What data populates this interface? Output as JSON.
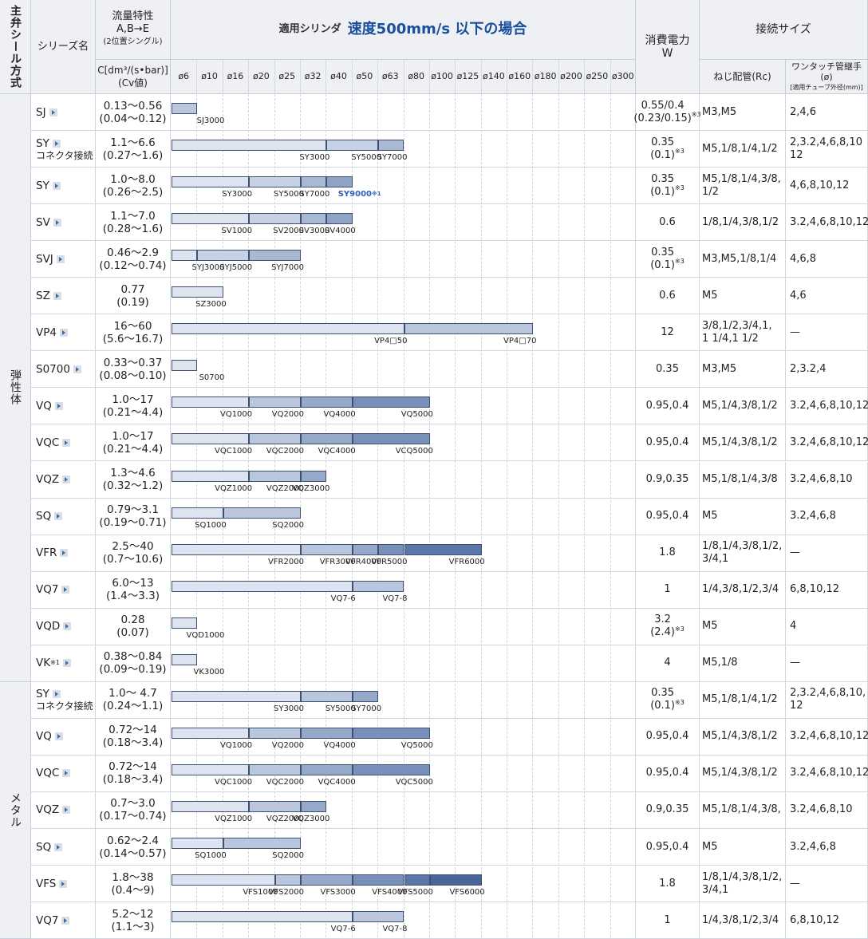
{
  "header": {
    "seal": "主弁シール方式",
    "series": "シリーズ名",
    "flow_title": "流量特性\nA,B→E",
    "flow_sub": "(2位置シングル)",
    "flow_units": "C[dm³/(s•bar)]\n(Cv値)",
    "cylinder_label": "適用シリンダ",
    "cylinder_speed": "速度500mm/s 以下の場合",
    "power": "消費電力\nW",
    "connection": "接続サイズ",
    "thread": "ねじ配管(Rc)",
    "onetouch": "ワンタッチ管継手(ø)",
    "onetouch_sub": "[適用チューブ外径(mm)]"
  },
  "diameters": [
    "ø6",
    "ø10",
    "ø16",
    "ø20",
    "ø25",
    "ø32",
    "ø40",
    "ø50",
    "ø63",
    "ø80",
    "ø100",
    "ø125",
    "ø140",
    "ø160",
    "ø180",
    "ø200",
    "ø250",
    "ø300"
  ],
  "groups": [
    {
      "label": "弾性体",
      "rows": 16
    },
    {
      "label": "メタル",
      "rows": 7
    }
  ],
  "rows": [
    {
      "series": "SJ",
      "sub": "",
      "flow": "0.13〜0.56\n(0.04〜0.12)",
      "power": "0.55/0.4\n(0.23/0.15)",
      "power_note": "※3",
      "port": "M3,M5",
      "onetouch": "2,4,6",
      "bars": [
        {
          "label": "SJ3000",
          "end": 1,
          "color": "#b9c6db"
        }
      ]
    },
    {
      "series": "SY",
      "sub": "コネクタ接続",
      "flow": "1.1〜6.6\n(0.27〜1.6)",
      "power": "0.35\n(0.1)",
      "power_note": "※3",
      "port": "M5,1/8,1/4,1/2",
      "onetouch": "2,3.2,4,6,8,10\n12",
      "bars": [
        {
          "label": "SY3000",
          "end": 6,
          "color": "#dde4ef"
        },
        {
          "label": "SY5000",
          "end": 8,
          "color": "#c6d1e3"
        },
        {
          "label": "SY7000",
          "end": 9,
          "color": "#a9b9d4"
        }
      ]
    },
    {
      "series": "SY",
      "sub": "",
      "flow": "1.0〜8.0\n(0.26〜2.5)",
      "power": "0.35\n(0.1)",
      "power_note": "※3",
      "port": "M5,1/8,1/4,3/8,\n1/2",
      "onetouch": "4,6,8,10,12",
      "bars": [
        {
          "label": "SY3000",
          "end": 3,
          "color": "#dde4ef"
        },
        {
          "label": "SY5000",
          "end": 5,
          "color": "#c6d1e3"
        },
        {
          "label": "SY7000",
          "end": 6,
          "color": "#a9b9d4"
        },
        {
          "label": "SY9000",
          "end": 7,
          "color": "#8ea3c6"
        }
      ]
    },
    {
      "series": "SV",
      "sub": "",
      "flow": "1.1〜7.0\n(0.28〜1.6)",
      "power": "0.6",
      "power_note": "",
      "port": "1/8,1/4,3/8,1/2",
      "onetouch": "3.2,4,6,8,10,12",
      "bars": [
        {
          "label": "SV1000",
          "end": 3,
          "color": "#dde4ef"
        },
        {
          "label": "SV2000",
          "end": 5,
          "color": "#c6d1e3"
        },
        {
          "label": "SV3000",
          "end": 6,
          "color": "#a9b9d4"
        },
        {
          "label": "SV4000",
          "end": 7,
          "color": "#8ea3c6"
        }
      ]
    },
    {
      "series": "SVJ",
      "sub": "",
      "flow": "0.46〜2.9\n(0.12〜0.74)",
      "power": "0.35\n(0.1)",
      "power_note": "※3",
      "port": "M3,M5,1/8,1/4",
      "onetouch": "4,6,8",
      "bars": [
        {
          "label": "SYJ3000",
          "end": 1,
          "color": "#dde4ef"
        },
        {
          "label": "SYJ5000",
          "end": 3,
          "color": "#c6d1e3"
        },
        {
          "label": "SYJ7000",
          "end": 5,
          "color": "#a9b9d4"
        }
      ]
    },
    {
      "series": "SZ",
      "sub": "",
      "flow": "0.77\n(0.19)",
      "power": "0.6",
      "power_note": "",
      "port": "M5",
      "onetouch": "4,6",
      "bars": [
        {
          "label": "SZ3000",
          "end": 2,
          "color": "#dde4ef"
        }
      ]
    },
    {
      "series": "VP4",
      "sub": "",
      "flow": "16〜60\n(5.6〜16.7)",
      "power": "12",
      "power_note": "",
      "port": "3/8,1/2,3/4,1,\n1 1/4,1 1/2",
      "onetouch": "—",
      "bars": [
        {
          "label": "VP4□50",
          "end": 9,
          "color": "#dde4ef"
        },
        {
          "label": "VP4□70",
          "end": 14,
          "color": "#b9c6db"
        }
      ]
    },
    {
      "series": "S0700",
      "sub": "",
      "flow": "0.33〜0.37\n(0.08〜0.10)",
      "power": "0.35",
      "power_note": "",
      "port": "M3,M5",
      "onetouch": "2,3.2,4",
      "bars": [
        {
          "label": "S0700",
          "end": 1,
          "color": "#dde4ef"
        }
      ]
    },
    {
      "series": "VQ",
      "sub": "",
      "flow": "1.0〜17\n(0.21〜4.4)",
      "power": "0.95,0.4",
      "power_note": "",
      "port": "M5,1/4,3/8,1/2",
      "onetouch": "3.2,4,6,8,10,12",
      "bars": [
        {
          "label": "VQ1000",
          "end": 3,
          "color": "#dde4ef"
        },
        {
          "label": "VQ2000",
          "end": 5,
          "color": "#b9c6db"
        },
        {
          "label": "VQ4000",
          "end": 7,
          "color": "#97a9c9"
        },
        {
          "label": "VQ5000",
          "end": 10,
          "color": "#7890ba"
        }
      ]
    },
    {
      "series": "VQC",
      "sub": "",
      "flow": "1.0〜17\n(0.21〜4.4)",
      "power": "0.95,0.4",
      "power_note": "",
      "port": "M5,1/4,3/8,1/2",
      "onetouch": "3.2,4,6,8,10,12",
      "bars": [
        {
          "label": "VQC1000",
          "end": 3,
          "color": "#dde4ef"
        },
        {
          "label": "VQC2000",
          "end": 5,
          "color": "#b9c6db"
        },
        {
          "label": "VQC4000",
          "end": 7,
          "color": "#97a9c9"
        },
        {
          "label": "VCQ5000",
          "end": 10,
          "color": "#7890ba"
        }
      ]
    },
    {
      "series": "VQZ",
      "sub": "",
      "flow": "1.3〜4.6\n(0.32〜1.2)",
      "power": "0.9,0.35",
      "power_note": "",
      "port": "M5,1/8,1/4,3/8",
      "onetouch": "3.2,4,6,8,10",
      "bars": [
        {
          "label": "VQZ1000",
          "end": 3,
          "color": "#dde4ef"
        },
        {
          "label": "VQZ2000",
          "end": 5,
          "color": "#b9c6db"
        },
        {
          "label": "VQZ3000",
          "end": 6,
          "color": "#97a9c9"
        }
      ]
    },
    {
      "series": "SQ",
      "sub": "",
      "flow": "0.79〜3.1\n(0.19〜0.71)",
      "power": "0.95,0.4",
      "power_note": "",
      "port": "M5",
      "onetouch": "3.2,4,6,8",
      "bars": [
        {
          "label": "SQ1000",
          "end": 2,
          "color": "#dde4ef"
        },
        {
          "label": "SQ2000",
          "end": 5,
          "color": "#b9c6db"
        }
      ]
    },
    {
      "series": "VFR",
      "sub": "",
      "flow": "2.5〜40\n(0.7〜10.6)",
      "power": "1.8",
      "power_note": "",
      "port": "1/8,1/4,3/8,1/2,\n3/4,1",
      "onetouch": "—",
      "bars": [
        {
          "label": "VFR2000",
          "end": 5,
          "color": "#dde4ef"
        },
        {
          "label": "VFR3000",
          "end": 7,
          "color": "#b9c6db"
        },
        {
          "label": "VFR4000",
          "end": 8,
          "color": "#97a9c9"
        },
        {
          "label": "VFR5000",
          "end": 9,
          "color": "#7890ba"
        },
        {
          "label": "VFR6000",
          "end": 12,
          "color": "#5b77a8"
        }
      ]
    },
    {
      "series": "VQ7",
      "sub": "",
      "flow": "6.0〜13\n(1.4〜3.3)",
      "power": "1",
      "power_note": "",
      "port": "1/4,3/8,1/2,3/4",
      "onetouch": "6,8,10,12",
      "bars": [
        {
          "label": "VQ7-6",
          "end": 7,
          "color": "#dde4ef"
        },
        {
          "label": "VQ7-8",
          "end": 9,
          "color": "#b9c6db"
        }
      ]
    },
    {
      "series": "VQD",
      "sub": "",
      "flow": "0.28\n(0.07)",
      "power": "3.2\n(2.4)",
      "power_note": "※3",
      "port": "M5",
      "onetouch": "4",
      "bars": [
        {
          "label": "VQD1000",
          "end": 1,
          "color": "#dde4ef"
        }
      ]
    },
    {
      "series": "VK",
      "series_note": "※1",
      "sub": "",
      "flow": "0.38〜0.84\n(0.09〜0.19)",
      "power": "4",
      "power_note": "",
      "port": "M5,1/8",
      "onetouch": "—",
      "bars": [
        {
          "label": "VK3000",
          "end": 1,
          "color": "#dde4ef"
        }
      ]
    },
    {
      "series": "SY",
      "sub": "コネクタ接続",
      "flow": "1.0〜 4.7\n(0.24〜1.1)",
      "power": "0.35\n(0.1)",
      "power_note": "※3",
      "port": "M5,1/8,1/4,1/2",
      "onetouch": "2,3.2,4,6,8,10,\n12",
      "bars": [
        {
          "label": "SY3000",
          "end": 5,
          "color": "#dde4ef"
        },
        {
          "label": "SY5000",
          "end": 7,
          "color": "#b9c6db"
        },
        {
          "label": "SY7000",
          "end": 8,
          "color": "#97a9c9"
        }
      ]
    },
    {
      "series": "VQ",
      "sub": "",
      "flow": "0.72〜14\n(0.18〜3.4)",
      "power": "0.95,0.4",
      "power_note": "",
      "port": "M5,1/4,3/8,1/2",
      "onetouch": "3.2,4,6,8,10,12",
      "bars": [
        {
          "label": "VQ1000",
          "end": 3,
          "color": "#dde4ef"
        },
        {
          "label": "VQ2000",
          "end": 5,
          "color": "#b9c6db"
        },
        {
          "label": "VQ4000",
          "end": 7,
          "color": "#97a9c9"
        },
        {
          "label": "VQ5000",
          "end": 10,
          "color": "#7890ba"
        }
      ]
    },
    {
      "series": "VQC",
      "sub": "",
      "flow": "0.72〜14\n(0.18〜3.4)",
      "power": "0.95,0.4",
      "power_note": "",
      "port": "M5,1/4,3/8,1/2",
      "onetouch": "3.2,4,6,8,10,12",
      "bars": [
        {
          "label": "VQC1000",
          "end": 3,
          "color": "#dde4ef"
        },
        {
          "label": "VQC2000",
          "end": 5,
          "color": "#b9c6db"
        },
        {
          "label": "VQC4000",
          "end": 7,
          "color": "#97a9c9"
        },
        {
          "label": "VQC5000",
          "end": 10,
          "color": "#7890ba"
        }
      ]
    },
    {
      "series": "VQZ",
      "sub": "",
      "flow": "0.7〜3.0\n(0.17〜0.74)",
      "power": "0.9,0.35",
      "power_note": "",
      "port": "M5,1/8,1/4,3/8,",
      "onetouch": "3.2,4,6,8,10",
      "bars": [
        {
          "label": "VQZ1000",
          "end": 3,
          "color": "#dde4ef"
        },
        {
          "label": "VQZ2000",
          "end": 5,
          "color": "#b9c6db"
        },
        {
          "label": "VQZ3000",
          "end": 6,
          "color": "#97a9c9"
        }
      ]
    },
    {
      "series": "SQ",
      "sub": "",
      "flow": "0.62〜2.4\n(0.14〜0.57)",
      "power": "0.95,0.4",
      "power_note": "",
      "port": "M5",
      "onetouch": "3.2,4,6,8",
      "bars": [
        {
          "label": "SQ1000",
          "end": 2,
          "color": "#dde4ef"
        },
        {
          "label": "SQ2000",
          "end": 5,
          "color": "#b9c6db"
        }
      ]
    },
    {
      "series": "VFS",
      "sub": "",
      "flow": "1.8〜38\n(0.4〜9)",
      "power": "1.8",
      "power_note": "",
      "port": "1/8,1/4,3/8,1/2,\n3/4,1",
      "onetouch": "—",
      "bars": [
        {
          "label": "VFS1000",
          "end": 4,
          "color": "#dde4ef"
        },
        {
          "label": "VFS2000",
          "end": 5,
          "color": "#b9c6db"
        },
        {
          "label": "VFS3000",
          "end": 7,
          "color": "#97a9c9"
        },
        {
          "label": "VFS4000",
          "end": 9,
          "color": "#7890ba"
        },
        {
          "label": "VFS5000",
          "end": 10,
          "color": "#5b77a8"
        },
        {
          "label": "VFS6000",
          "end": 12,
          "color": "#4a6699"
        }
      ]
    },
    {
      "series": "VQ7",
      "sub": "",
      "flow": "5.2〜12\n(1.1〜3)",
      "power": "1",
      "power_note": "",
      "port": "1/4,3/8,1/2,3/4",
      "onetouch": "6,8,10,12",
      "bars": [
        {
          "label": "VQ7-6",
          "end": 7,
          "color": "#dde4ef"
        },
        {
          "label": "VQ7-8",
          "end": 9,
          "color": "#b9c6db"
        }
      ]
    }
  ],
  "note_sy9000": "※1"
}
